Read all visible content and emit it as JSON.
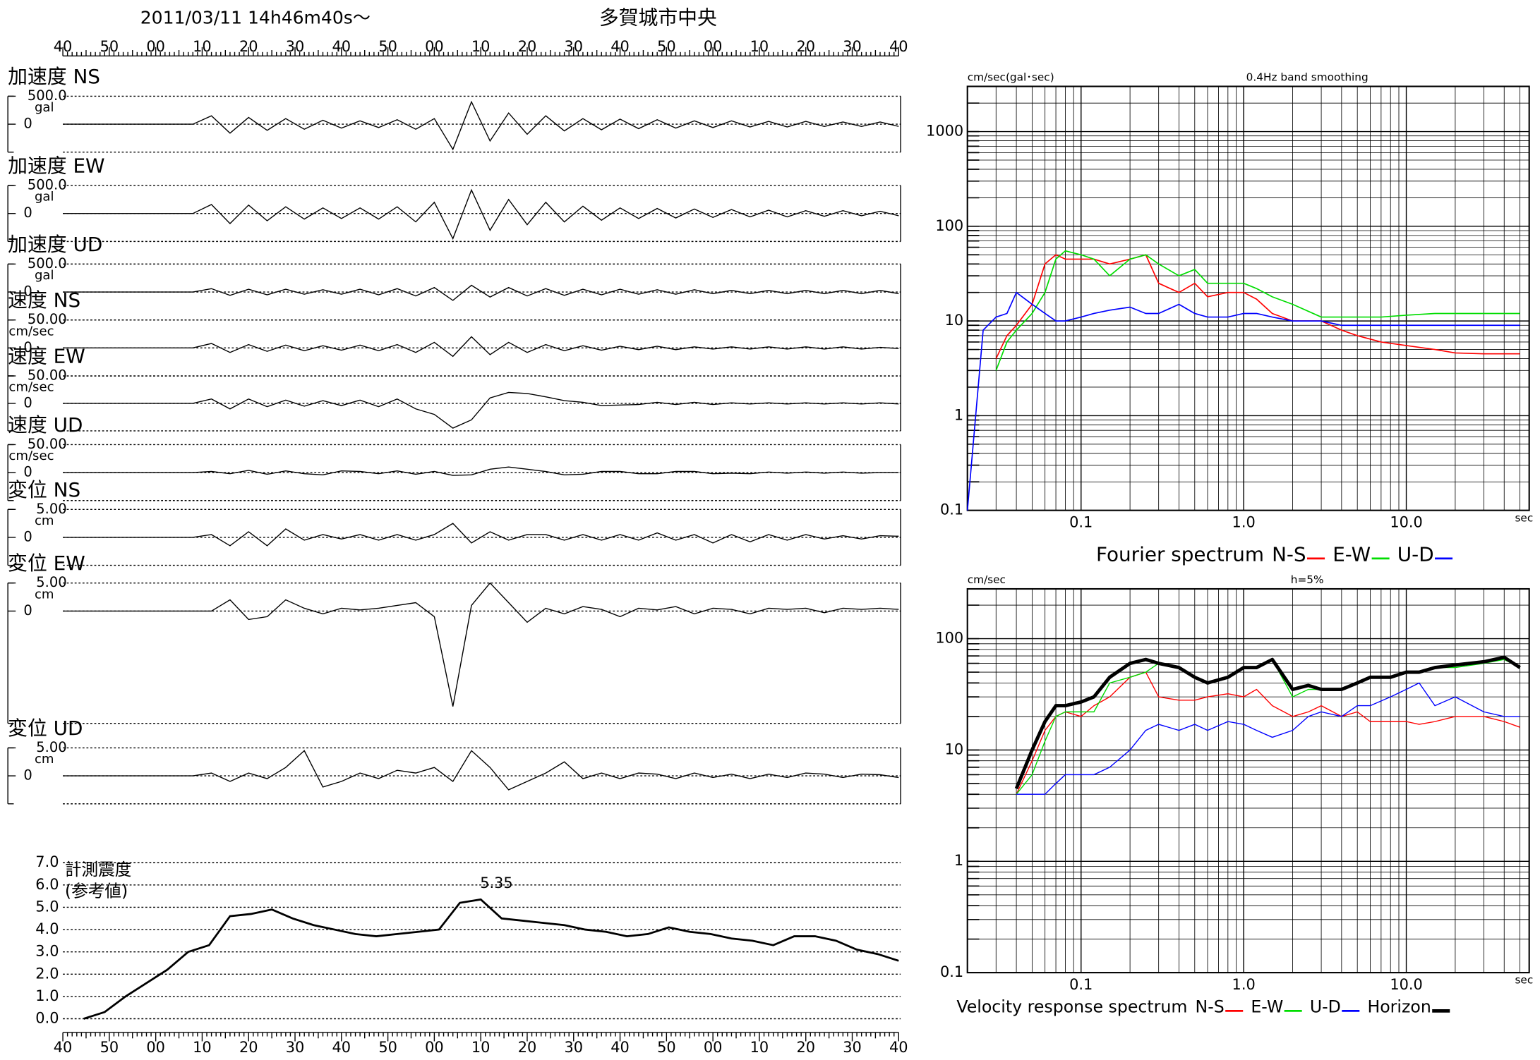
{
  "chart_data": [
    {
      "type": "waveform",
      "title": "2011/03/11  14h46m40s〜",
      "subtitle": "多賀城市中央",
      "categories": [
        "40",
        "50",
        "00",
        "10",
        "20",
        "30",
        "40",
        "50",
        "00",
        "10",
        "20",
        "30",
        "40",
        "50",
        "00",
        "10",
        "20",
        "30",
        "40"
      ],
      "panels": [
        {
          "label": "加速度 NS",
          "unit": "gal",
          "ylim": [
            -500,
            500
          ],
          "yticks": [
            {
              "value": 500,
              "label": "500.0"
            },
            0
          ],
          "values": [
            0,
            0,
            0,
            0,
            0,
            0,
            0,
            0,
            150,
            -160,
            120,
            -110,
            100,
            -90,
            70,
            -70,
            60,
            -60,
            80,
            -90,
            100,
            -450,
            400,
            -300,
            200,
            -180,
            150,
            -120,
            100,
            -100,
            90,
            -80,
            80,
            -70,
            60,
            -60,
            60,
            -50,
            50,
            -50,
            50,
            -40,
            40,
            -40,
            40,
            -40
          ]
        },
        {
          "label": "加速度 EW",
          "unit": "gal",
          "ylim": [
            -500,
            500
          ],
          "yticks": [
            {
              "value": 500,
              "label": "500.0"
            },
            0
          ],
          "values": [
            0,
            0,
            0,
            0,
            0,
            0,
            0,
            0,
            160,
            -180,
            150,
            -130,
            120,
            -100,
            100,
            -90,
            100,
            -100,
            120,
            -150,
            200,
            -450,
            420,
            -300,
            250,
            -200,
            200,
            -150,
            130,
            -120,
            100,
            -90,
            90,
            -80,
            80,
            -70,
            70,
            -60,
            60,
            -60,
            50,
            -50,
            50,
            -40,
            40,
            -40
          ]
        },
        {
          "label": "加速度 UD",
          "unit": "gal",
          "ylim": [
            -500,
            500
          ],
          "yticks": [
            {
              "value": 500,
              "label": "500.0"
            },
            0
          ],
          "values": [
            0,
            0,
            0,
            0,
            0,
            0,
            0,
            0,
            60,
            -60,
            50,
            -50,
            50,
            -40,
            40,
            -40,
            50,
            -50,
            60,
            -70,
            80,
            -150,
            120,
            -90,
            80,
            -70,
            60,
            -60,
            50,
            -50,
            50,
            -40,
            40,
            -40,
            40,
            -30,
            30,
            -30,
            30,
            -30,
            30,
            -30,
            30,
            -30,
            30,
            -30
          ]
        },
        {
          "label": "速度 NS",
          "unit": "cm/sec",
          "ylim": [
            -50,
            50
          ],
          "yticks": [
            {
              "value": 50,
              "label": "50.00"
            },
            0
          ],
          "values": [
            0,
            0,
            0,
            0,
            0,
            0,
            0,
            0,
            8,
            -8,
            6,
            -6,
            5,
            -5,
            4,
            -4,
            5,
            -5,
            6,
            -8,
            10,
            -15,
            20,
            -12,
            10,
            -8,
            6,
            -5,
            4,
            -4,
            3,
            -3,
            3,
            -3,
            2,
            -2,
            2,
            -2,
            2,
            -2,
            2,
            -2,
            2,
            -2,
            1,
            -1
          ]
        },
        {
          "label": "速度 EW",
          "unit": "cm/sec",
          "ylim": [
            -50,
            50
          ],
          "yticks": [
            {
              "value": 50,
              "label": "50.00"
            },
            0
          ],
          "values": [
            0,
            0,
            0,
            0,
            0,
            0,
            0,
            0,
            8,
            -10,
            8,
            -6,
            6,
            -5,
            5,
            -4,
            6,
            -6,
            8,
            -10,
            -20,
            -45,
            -30,
            10,
            20,
            18,
            12,
            5,
            2,
            -4,
            -3,
            -2,
            2,
            -2,
            2,
            -2,
            1,
            -1,
            1,
            -1,
            1,
            -1,
            1,
            -1,
            1,
            -1
          ]
        },
        {
          "label": "速度 UD",
          "unit": "cm/sec",
          "ylim": [
            -50,
            50
          ],
          "yticks": [
            {
              "value": 50,
              "label": "50.00"
            },
            0
          ],
          "values": [
            0,
            0,
            0,
            0,
            0,
            0,
            0,
            0,
            2,
            -2,
            4,
            -3,
            3,
            -2,
            -4,
            3,
            2,
            -2,
            3,
            -3,
            2,
            -5,
            -4,
            6,
            10,
            6,
            2,
            -4,
            -3,
            2,
            2,
            -2,
            -2,
            2,
            2,
            -2,
            -1,
            -2,
            1,
            -1,
            1,
            -1,
            1,
            -1,
            0,
            0
          ]
        },
        {
          "label": "変位 NS",
          "unit": "cm",
          "ylim": [
            -5,
            5
          ],
          "yticks": [
            {
              "value": 5,
              "label": "5.00"
            },
            0
          ],
          "values": [
            0,
            0,
            0,
            0,
            0,
            0,
            0,
            0,
            0.5,
            -1.5,
            1.0,
            -1.5,
            1.5,
            -0.5,
            0.5,
            -0.3,
            0.5,
            -0.5,
            0.5,
            -0.5,
            0.5,
            2.5,
            -1.0,
            1.0,
            -0.5,
            0.5,
            0.5,
            -0.5,
            0.5,
            -0.5,
            0.5,
            -0.5,
            0.8,
            -0.5,
            0.5,
            -1.0,
            0.5,
            -0.8,
            0.5,
            -0.5,
            0.5,
            -0.3,
            0.3,
            -0.3,
            0.3,
            0.2
          ]
        },
        {
          "label": "変位 EW",
          "unit": "cm",
          "ylim": [
            -20,
            5
          ],
          "yticks": [
            {
              "value": 5,
              "label": "5.00"
            },
            0
          ],
          "values": [
            0,
            0,
            0,
            0,
            0,
            0,
            0,
            0,
            0,
            2.0,
            -1.5,
            -1.0,
            2.0,
            0.5,
            -0.5,
            0.5,
            0.2,
            0.5,
            1.0,
            1.5,
            -1.0,
            -17,
            1.0,
            5.0,
            1.5,
            -2.0,
            0.5,
            -0.5,
            0.8,
            0.3,
            -1.0,
            0.5,
            0.2,
            0.8,
            -0.5,
            0.5,
            0.3,
            -0.5,
            0.5,
            0.3,
            0.5,
            -0.3,
            0.5,
            0.3,
            0.5,
            0.3
          ]
        },
        {
          "label": "変位 UD",
          "unit": "cm",
          "ylim": [
            -5,
            5
          ],
          "yticks": [
            {
              "value": 5,
              "label": "5.00"
            },
            0
          ],
          "values": [
            0,
            0,
            0,
            0,
            0,
            0,
            0,
            0,
            0.5,
            -1.0,
            0.5,
            -0.5,
            1.5,
            4.5,
            -2.0,
            -1.0,
            0.5,
            -0.5,
            1.0,
            0.5,
            1.5,
            -1.0,
            4.5,
            1.5,
            -2.5,
            -1.0,
            0.5,
            2.5,
            -0.5,
            0.5,
            -0.5,
            0.5,
            0.3,
            -0.5,
            0.5,
            -0.3,
            0.3,
            -0.5,
            0.3,
            -0.3,
            0.5,
            0.3,
            -0.3,
            0.3,
            0.2,
            -0.3
          ]
        }
      ]
    },
    {
      "type": "intensity",
      "ylabel": "計測震度",
      "ylabel_note": "(参考値)",
      "peak": 5.35,
      "ylim": [
        0,
        7
      ],
      "yticks": [
        {
          "value": 0,
          "label": "0.0"
        },
        {
          "value": 1,
          "label": "1.0"
        },
        {
          "value": 2,
          "label": "2.0"
        },
        {
          "value": 3,
          "label": "3.0"
        },
        {
          "value": 4,
          "label": "4.0"
        },
        {
          "value": 5,
          "label": "5.0"
        },
        {
          "value": 6,
          "label": "6.0"
        },
        {
          "value": 7,
          "label": "7.0"
        }
      ],
      "values": [
        null,
        0.0,
        0.3,
        1.0,
        1.6,
        2.2,
        3.0,
        3.3,
        4.6,
        4.7,
        4.9,
        4.5,
        4.2,
        4.0,
        3.8,
        3.7,
        3.8,
        3.9,
        4.0,
        5.2,
        5.35,
        4.5,
        4.4,
        4.3,
        4.2,
        4.0,
        3.9,
        3.7,
        3.8,
        4.1,
        3.9,
        3.8,
        3.6,
        3.5,
        3.3,
        3.7,
        3.7,
        3.5,
        3.1,
        2.9,
        2.6
      ]
    },
    {
      "type": "logline",
      "title": "Fourier spectrum",
      "ylabel": "cm/sec(gal･sec)",
      "subtitle": "0.4Hz band smoothing",
      "xlabel": "sec",
      "log_x": true,
      "log_y": true,
      "grid": true,
      "minor_grid": true,
      "xlim": [
        0.02,
        57
      ],
      "ylim": [
        0.1,
        3000
      ],
      "xticks": [
        0.1,
        {
          "value": 1,
          "label": "1.0"
        },
        {
          "value": 10,
          "label": "10.0"
        }
      ],
      "yticks": [
        0.1,
        1,
        10,
        100,
        1000
      ],
      "x": [
        0.02,
        0.025,
        0.03,
        0.035,
        0.04,
        0.05,
        0.06,
        0.07,
        0.08,
        0.1,
        0.12,
        0.15,
        0.2,
        0.25,
        0.3,
        0.4,
        0.5,
        0.6,
        0.8,
        1,
        1.2,
        1.5,
        2,
        3,
        4,
        5,
        7,
        10,
        15,
        20,
        30,
        40,
        50
      ],
      "series": [
        {
          "name": "N-S",
          "color": "#ff0000",
          "values": [
            null,
            null,
            4,
            7,
            9,
            15,
            40,
            50,
            45,
            45,
            45,
            40,
            45,
            50,
            25,
            20,
            25,
            18,
            20,
            20,
            17,
            12,
            10,
            10,
            8,
            7,
            6,
            5.5,
            5,
            4.6,
            4.5,
            4.5,
            4.5
          ]
        },
        {
          "name": "E-W",
          "color": "#00dd00",
          "values": [
            null,
            null,
            3,
            6,
            8,
            12,
            20,
            45,
            55,
            50,
            45,
            30,
            45,
            50,
            40,
            30,
            35,
            25,
            25,
            25,
            22,
            18,
            15,
            11,
            11,
            11,
            11,
            11.5,
            12,
            12,
            12,
            12,
            12
          ]
        },
        {
          "name": "U-D",
          "color": "#0000ff",
          "values": [
            0.1,
            8,
            11,
            12,
            20,
            15,
            12,
            10,
            10,
            11,
            12,
            13,
            14,
            12,
            12,
            15,
            12,
            11,
            11,
            12,
            12,
            11,
            10,
            10,
            9,
            9,
            9,
            9,
            9,
            9,
            9,
            9,
            9
          ]
        }
      ]
    },
    {
      "type": "logline",
      "title": "Velocity response spectrum",
      "ylabel": "cm/sec",
      "subtitle": "h=5%",
      "xlabel": "sec",
      "log_x": true,
      "log_y": true,
      "grid": true,
      "minor_grid": true,
      "xlim": [
        0.02,
        57
      ],
      "ylim": [
        0.1,
        280
      ],
      "xticks": [
        0.1,
        {
          "value": 1,
          "label": "1.0"
        },
        {
          "value": 10,
          "label": "10.0"
        }
      ],
      "yticks": [
        0.1,
        1,
        10,
        100
      ],
      "x": [
        0.04,
        0.05,
        0.06,
        0.07,
        0.08,
        0.1,
        0.12,
        0.15,
        0.2,
        0.25,
        0.3,
        0.4,
        0.5,
        0.6,
        0.8,
        1,
        1.2,
        1.5,
        2,
        2.5,
        3,
        4,
        5,
        6,
        8,
        10,
        12,
        15,
        20,
        30,
        40,
        50
      ],
      "series": [
        {
          "name": "N-S",
          "color": "#ff0000",
          "width": 1,
          "values": [
            4,
            8,
            15,
            20,
            22,
            20,
            25,
            30,
            45,
            50,
            30,
            28,
            28,
            30,
            32,
            30,
            35,
            25,
            20,
            22,
            25,
            20,
            22,
            18,
            18,
            18,
            17,
            18,
            20,
            20,
            18,
            16
          ]
        },
        {
          "name": "E-W",
          "color": "#00dd00",
          "width": 1,
          "values": [
            4,
            6,
            12,
            20,
            22,
            22,
            22,
            40,
            45,
            50,
            60,
            55,
            45,
            40,
            45,
            55,
            55,
            65,
            30,
            35,
            35,
            35,
            40,
            45,
            45,
            50,
            50,
            55,
            55,
            60,
            65,
            55
          ]
        },
        {
          "name": "U-D",
          "color": "#0000ff",
          "width": 1,
          "values": [
            4,
            4,
            4,
            5,
            6,
            6,
            6,
            7,
            10,
            15,
            17,
            15,
            17,
            15,
            18,
            17,
            15,
            13,
            15,
            20,
            22,
            20,
            25,
            25,
            30,
            35,
            40,
            25,
            30,
            22,
            20,
            20
          ]
        },
        {
          "name": "Horizon",
          "color": "#000000",
          "width": 3.5,
          "values": [
            4.5,
            10,
            18,
            25,
            25,
            27,
            30,
            45,
            60,
            65,
            60,
            55,
            45,
            40,
            45,
            55,
            55,
            65,
            35,
            38,
            35,
            35,
            40,
            45,
            45,
            50,
            50,
            55,
            58,
            62,
            68,
            55
          ]
        }
      ]
    }
  ]
}
